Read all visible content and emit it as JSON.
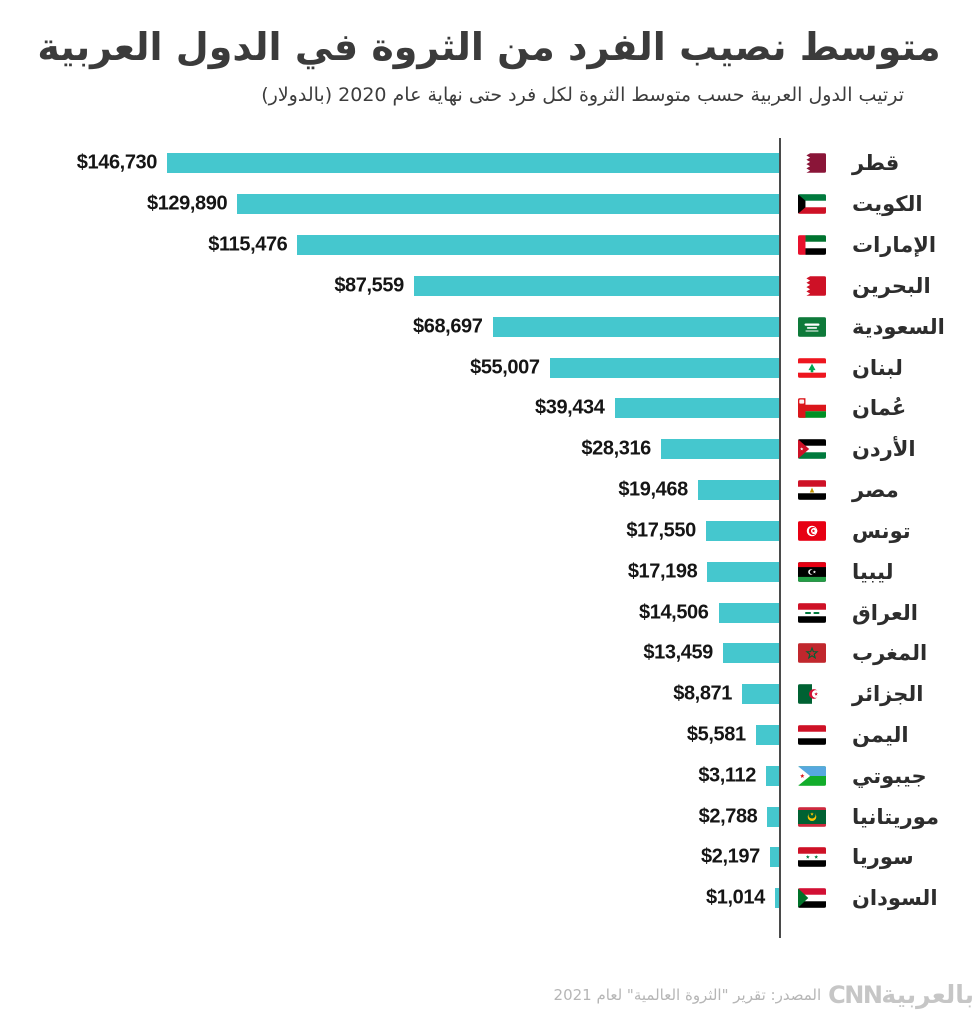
{
  "header": {
    "title": "متوسط نصيب الفرد من الثروة في الدول العربية",
    "subtitle": "ترتيب الدول العربية حسب متوسط الثروة لكل فرد حتى نهاية عام 2020 (بالدولار)"
  },
  "footer": {
    "source": "المصدر: تقرير \"الثروة العالمية\" لعام 2021",
    "logo_arabic": "بالعربية",
    "logo_latin": "CNN"
  },
  "chart_data": {
    "type": "bar",
    "orientation": "horizontal",
    "direction": "rtl",
    "unit": "USD",
    "xlim": [
      0,
      146730
    ],
    "grid": false,
    "bar_color": "#45C7CE",
    "axis_color": "#4A4A4A",
    "categories": [
      "قطر",
      "الكويت",
      "الإمارات",
      "البحرين",
      "السعودية",
      "لبنان",
      "عُمان",
      "الأردن",
      "مصر",
      "تونس",
      "ليبيا",
      "العراق",
      "المغرب",
      "الجزائر",
      "اليمن",
      "جيبوتي",
      "موريتانيا",
      "سوريا",
      "السودان"
    ],
    "values": [
      146730,
      129890,
      115476,
      87559,
      68697,
      55007,
      39434,
      28316,
      19468,
      17550,
      17198,
      14506,
      13459,
      8871,
      5581,
      3112,
      2788,
      2197,
      1014
    ],
    "value_labels": [
      "$146,730",
      "$129,890",
      "$115,476",
      "$87,559",
      "$68,697",
      "$55,007",
      "$39,434",
      "$28,316",
      "$19,468",
      "$17,550",
      "$17,198",
      "$14,506",
      "$13,459",
      "$8,871",
      "$5,581",
      "$3,112",
      "$2,788",
      "$2,197",
      "$1,014"
    ],
    "flag_keys": [
      "qatar",
      "kuwait",
      "uae",
      "bahrain",
      "saudi-arabia",
      "lebanon",
      "oman",
      "jordan",
      "egypt",
      "tunisia",
      "libya",
      "iraq",
      "morocco",
      "algeria",
      "yemen",
      "djibouti",
      "mauritania",
      "syria",
      "sudan"
    ]
  }
}
